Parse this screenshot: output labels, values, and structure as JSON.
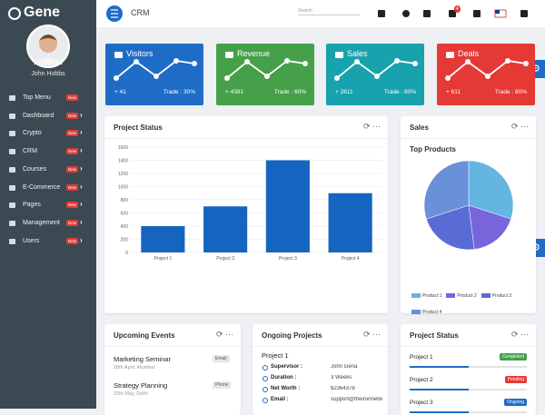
{
  "sidebar": {
    "brand": "Gene",
    "user": "John Hobbs",
    "menu": [
      {
        "label": "Top Menu",
        "badge": "New"
      },
      {
        "label": "Dashboard",
        "badge": "New"
      },
      {
        "label": "Crypto",
        "badge": "New"
      },
      {
        "label": "CRM",
        "badge": "New"
      },
      {
        "label": "Courses",
        "badge": "New"
      },
      {
        "label": "E-Commerce",
        "badge": "New"
      },
      {
        "label": "Pages",
        "badge": "New"
      },
      {
        "label": "Management",
        "badge": "New"
      },
      {
        "label": "Users",
        "badge": "New"
      }
    ]
  },
  "topbar": {
    "page": "CRM",
    "search": "Search",
    "cart_count": "4"
  },
  "cards": [
    {
      "title": "Visitors",
      "value": "+ 41",
      "trade": "Trade : 30%",
      "color": "#1e6cc6"
    },
    {
      "title": "Revenue",
      "value": "+ 4381",
      "trade": "Trade : 60%",
      "color": "#45a049"
    },
    {
      "title": "Sales",
      "value": "+ 2611",
      "trade": "Trade : 80%",
      "color": "#17a2ad"
    },
    {
      "title": "Deals",
      "value": "+ 611",
      "trade": "Trade : 80%",
      "color": "#e53935"
    }
  ],
  "chart_data": [
    {
      "type": "bar",
      "title": "Project Status",
      "categories": [
        "Project 1",
        "Project 2",
        "Project 3",
        "Project 4"
      ],
      "values": [
        400,
        700,
        1400,
        900
      ],
      "color": "#1565c0",
      "ylim": [
        0,
        1600
      ],
      "yticks": [
        0,
        200,
        400,
        600,
        800,
        1000,
        1200,
        1400,
        1600
      ],
      "grid": true
    },
    {
      "type": "pie",
      "panel": "Sales",
      "title": "Top Products",
      "categories": [
        "Product 1",
        "Product 2",
        "Product 3",
        "Product 4"
      ],
      "values": [
        30,
        18,
        22,
        30
      ],
      "colors": [
        "#65b5e2",
        "#7865dc",
        "#5b6bd5",
        "#6a90da"
      ]
    }
  ],
  "events": {
    "title": "Upcoming Events",
    "items": [
      {
        "name": "Marketing Seminar",
        "date": "28th April, Mumbai",
        "tag": "Email"
      },
      {
        "name": "Strategy Planning",
        "date": "22th May, Delhi",
        "tag": "Phone"
      }
    ]
  },
  "ongoing": {
    "title": "Ongoing Projects",
    "project": "Project 1",
    "rows": [
      {
        "label": "Supervisor :",
        "value": "John Gena"
      },
      {
        "label": "Duration :",
        "value": "3 Weeks"
      },
      {
        "label": "Net Worth :",
        "value": "$2364378"
      },
      {
        "label": "Email :",
        "value": "support@theironnetw"
      }
    ]
  },
  "status": {
    "title": "Project Status",
    "items": [
      {
        "name": "Project 1",
        "status": "Completed",
        "color": "#43a047"
      },
      {
        "name": "Project 2",
        "status": "Pending",
        "color": "#e53935"
      },
      {
        "name": "Project 3",
        "status": "Ongoing",
        "color": "#1e6cc6"
      }
    ]
  }
}
